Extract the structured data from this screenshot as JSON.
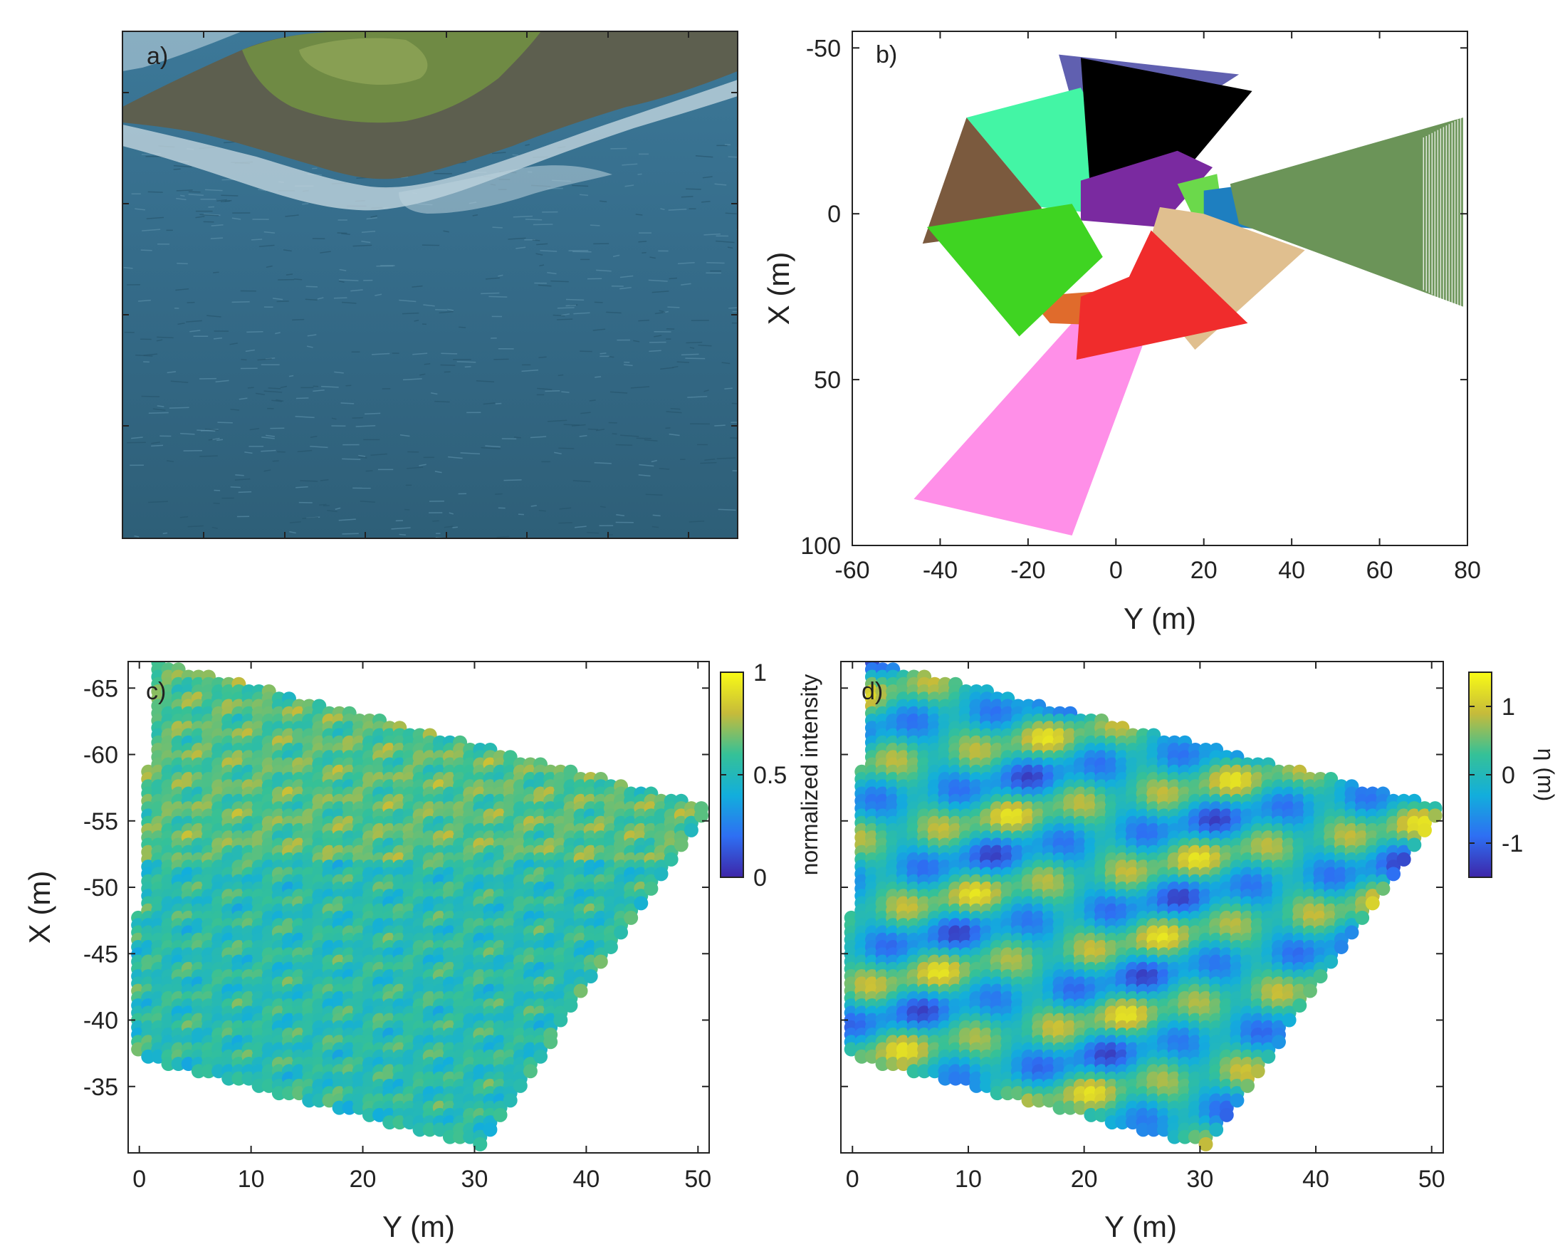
{
  "panel_a": {
    "label": "a)"
  },
  "chart_data": [
    {
      "type": "polygon-map",
      "panel_label": "b)",
      "xlabel": "Y (m)",
      "ylabel": "X (m)",
      "xlim": [
        -60,
        80
      ],
      "ylim": [
        -50,
        100
      ],
      "y_reversed": true,
      "xticks": [
        "-60",
        "-40",
        "-20",
        "0",
        "20",
        "40",
        "60",
        "80"
      ],
      "yticks": [
        "-50",
        "0",
        "50",
        "100"
      ],
      "yticks_values": [
        -50,
        0,
        50,
        100
      ],
      "polygons": [
        {
          "color": "#ff8fe8",
          "points": [
            [
              -8,
              30
            ],
            [
              6,
              35
            ],
            [
              6,
              40
            ],
            [
              -10,
              97
            ],
            [
              -46,
              86
            ]
          ]
        },
        {
          "color": "#e06b2c",
          "points": [
            [
              -20,
              25
            ],
            [
              10,
              22
            ],
            [
              5,
              34
            ],
            [
              -15,
              33
            ]
          ]
        },
        {
          "color": "#6060b0",
          "points": [
            [
              -13,
              -48
            ],
            [
              28,
              -42
            ],
            [
              2,
              -20
            ],
            [
              -8,
              -24
            ]
          ]
        },
        {
          "color": "#43f5a5",
          "points": [
            [
              -34,
              -29
            ],
            [
              -8,
              -38
            ],
            [
              4,
              -8
            ],
            [
              -4,
              0
            ],
            [
              -17,
              -2
            ]
          ]
        },
        {
          "color": "#7b5a3e",
          "points": [
            [
              -34,
              -29
            ],
            [
              -17,
              -2
            ],
            [
              -16,
              4
            ],
            [
              -44,
              9
            ]
          ]
        },
        {
          "color": "#000000",
          "points": [
            [
              -8,
              -47
            ],
            [
              31,
              -37
            ],
            [
              12,
              -7
            ],
            [
              -6,
              -10
            ]
          ]
        },
        {
          "color": "#7a2aa0",
          "points": [
            [
              -8,
              -10
            ],
            [
              14,
              -19
            ],
            [
              22,
              -14
            ],
            [
              10,
              4
            ],
            [
              -8,
              2
            ]
          ]
        },
        {
          "color": "#6bd94b",
          "points": [
            [
              14,
              -9
            ],
            [
              23,
              -12
            ],
            [
              24,
              -3
            ],
            [
              18,
              2
            ]
          ]
        },
        {
          "color": "#1e7fc0",
          "points": [
            [
              20,
              -7
            ],
            [
              37,
              -10
            ],
            [
              35,
              5
            ],
            [
              20,
              3
            ]
          ]
        },
        {
          "color": "#6b9458",
          "points": [
            [
              26,
              -9
            ],
            [
              79,
              -29
            ],
            [
              79,
              28
            ],
            [
              28,
              3
            ]
          ]
        },
        {
          "color": "#e0bf8f",
          "points": [
            [
              10,
              -2
            ],
            [
              20,
              0
            ],
            [
              43,
              11
            ],
            [
              18,
              41
            ],
            [
              5,
              20
            ]
          ]
        },
        {
          "color": "#3fd422",
          "points": [
            [
              -43,
              4
            ],
            [
              -10,
              -3
            ],
            [
              -3,
              13
            ],
            [
              -22,
              37
            ]
          ]
        },
        {
          "color": "#f02c2c",
          "points": [
            [
              3,
              19
            ],
            [
              8,
              5
            ],
            [
              30,
              33
            ],
            [
              -9,
              44
            ],
            [
              -8,
              25
            ]
          ]
        }
      ]
    },
    {
      "type": "scatter",
      "panel_label": "c)",
      "xlabel": "Y (m)",
      "ylabel": "X (m)",
      "xlim": [
        -1,
        51
      ],
      "ylim": [
        -67,
        -30
      ],
      "y_reversed": true,
      "xticks": [
        "0",
        "10",
        "20",
        "30",
        "40",
        "50"
      ],
      "yticks": [
        "-65",
        "-60",
        "-55",
        "-50",
        "-45",
        "-40",
        "-35"
      ],
      "yticks_values": [
        -65,
        -60,
        -55,
        -50,
        -45,
        -40,
        -35
      ],
      "domain_polygon": [
        [
          1.5,
          -67
        ],
        [
          51,
          -56
        ],
        [
          30.5,
          -30.5
        ],
        [
          -1,
          -37.5
        ]
      ],
      "colorbar": {
        "label": "normalized intensity",
        "ticks": [
          "1",
          "0.5",
          "0"
        ],
        "range": [
          0,
          1
        ]
      }
    },
    {
      "type": "scatter",
      "panel_label": "d)",
      "xlabel": "Y (m)",
      "ylabel": "",
      "xlim": [
        -1,
        51
      ],
      "ylim": [
        -67,
        -30
      ],
      "y_reversed": true,
      "xticks": [
        "0",
        "10",
        "20",
        "30",
        "40",
        "50"
      ],
      "yticks": [],
      "domain_polygon": [
        [
          1.5,
          -67
        ],
        [
          51,
          -56
        ],
        [
          30.5,
          -30.5
        ],
        [
          -1,
          -37.5
        ]
      ],
      "colorbar": {
        "label": "η (m)",
        "ticks": [
          "1",
          "0",
          "-1"
        ],
        "range": [
          -1.5,
          1.5
        ]
      }
    }
  ]
}
